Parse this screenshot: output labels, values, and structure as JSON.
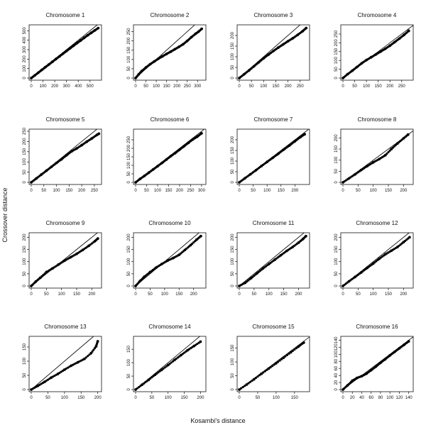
{
  "figure": {
    "xlabel": "Kosambi's distance",
    "ylabel": "Crossover distance"
  },
  "chart_data": [
    {
      "type": "scatter",
      "title": "Chromosome 1",
      "xlim": [
        0,
        580
      ],
      "ylim": [
        0,
        540
      ],
      "xticks": [
        0,
        100,
        200,
        300,
        400,
        500
      ],
      "yticks": [
        0,
        100,
        200,
        300,
        400,
        500
      ],
      "reference_line": "y = x",
      "points": [
        [
          0,
          0
        ],
        [
          30,
          28
        ],
        [
          60,
          57
        ],
        [
          90,
          86
        ],
        [
          120,
          115
        ],
        [
          150,
          143
        ],
        [
          180,
          172
        ],
        [
          210,
          201
        ],
        [
          240,
          229
        ],
        [
          270,
          258
        ],
        [
          300,
          286
        ],
        [
          330,
          314
        ],
        [
          360,
          342
        ],
        [
          390,
          370
        ],
        [
          420,
          397
        ],
        [
          450,
          425
        ],
        [
          480,
          452
        ],
        [
          510,
          478
        ],
        [
          540,
          503
        ],
        [
          570,
          528
        ]
      ]
    },
    {
      "type": "scatter",
      "title": "Chromosome  2",
      "xlim": [
        0,
        330
      ],
      "ylim": [
        0,
        275
      ],
      "xticks": [
        0,
        50,
        100,
        150,
        200,
        250,
        300
      ],
      "yticks": [
        0,
        50,
        100,
        150,
        200,
        250
      ],
      "reference_line": "y = x",
      "points": [
        [
          0,
          0
        ],
        [
          15,
          20
        ],
        [
          30,
          38
        ],
        [
          50,
          57
        ],
        [
          70,
          74
        ],
        [
          90,
          89
        ],
        [
          110,
          104
        ],
        [
          130,
          117
        ],
        [
          150,
          130
        ],
        [
          170,
          142
        ],
        [
          190,
          155
        ],
        [
          210,
          168
        ],
        [
          230,
          182
        ],
        [
          250,
          200
        ],
        [
          270,
          220
        ],
        [
          290,
          238
        ],
        [
          305,
          250
        ],
        [
          320,
          265
        ]
      ]
    },
    {
      "type": "scatter",
      "title": "Chromosome 3",
      "xlim": [
        0,
        280
      ],
      "ylim": [
        0,
        240
      ],
      "xticks": [
        0,
        50,
        100,
        150,
        200,
        250
      ],
      "yticks": [
        0,
        50,
        100,
        150,
        200
      ],
      "reference_line": "y = x",
      "points": [
        [
          0,
          0
        ],
        [
          20,
          18
        ],
        [
          40,
          36
        ],
        [
          60,
          55
        ],
        [
          80,
          74
        ],
        [
          100,
          93
        ],
        [
          120,
          110
        ],
        [
          140,
          127
        ],
        [
          160,
          143
        ],
        [
          180,
          158
        ],
        [
          200,
          173
        ],
        [
          220,
          187
        ],
        [
          240,
          203
        ],
        [
          260,
          220
        ],
        [
          275,
          235
        ]
      ]
    },
    {
      "type": "scatter",
      "title": "Chromosome 4",
      "xlim": [
        0,
        290
      ],
      "ylim": [
        0,
        290
      ],
      "xticks": [
        0,
        50,
        100,
        150,
        200,
        250
      ],
      "yticks": [
        0,
        50,
        100,
        150,
        200,
        250
      ],
      "reference_line": "y = x",
      "points": [
        [
          0,
          0
        ],
        [
          20,
          22
        ],
        [
          40,
          42
        ],
        [
          60,
          63
        ],
        [
          80,
          84
        ],
        [
          100,
          102
        ],
        [
          120,
          118
        ],
        [
          140,
          134
        ],
        [
          160,
          150
        ],
        [
          180,
          166
        ],
        [
          200,
          184
        ],
        [
          220,
          204
        ],
        [
          240,
          224
        ],
        [
          260,
          245
        ],
        [
          280,
          268
        ]
      ]
    },
    {
      "type": "scatter",
      "title": "Chromosome 5",
      "xlim": [
        0,
        270
      ],
      "ylim": [
        0,
        250
      ],
      "xticks": [
        0,
        50,
        100,
        150,
        200,
        250
      ],
      "yticks": [
        0,
        50,
        100,
        150,
        200,
        250
      ],
      "reference_line": "y = x",
      "points": [
        [
          0,
          0
        ],
        [
          20,
          19
        ],
        [
          40,
          38
        ],
        [
          60,
          57
        ],
        [
          80,
          76
        ],
        [
          100,
          95
        ],
        [
          120,
          113
        ],
        [
          140,
          133
        ],
        [
          160,
          152
        ],
        [
          180,
          166
        ],
        [
          200,
          182
        ],
        [
          220,
          199
        ],
        [
          240,
          215
        ],
        [
          260,
          232
        ],
        [
          268,
          238
        ]
      ]
    },
    {
      "type": "scatter",
      "title": "Chromosome 6",
      "xlim": [
        0,
        310
      ],
      "ylim": [
        0,
        300
      ],
      "xticks": [
        0,
        50,
        100,
        150,
        200,
        250,
        300
      ],
      "yticks": [
        0,
        50,
        100,
        150,
        200,
        250
      ],
      "reference_line": "y = x",
      "points": [
        [
          0,
          0
        ],
        [
          20,
          20
        ],
        [
          40,
          38
        ],
        [
          60,
          57
        ],
        [
          80,
          76
        ],
        [
          100,
          95
        ],
        [
          120,
          114
        ],
        [
          140,
          134
        ],
        [
          160,
          154
        ],
        [
          180,
          172
        ],
        [
          200,
          192
        ],
        [
          220,
          212
        ],
        [
          240,
          232
        ],
        [
          260,
          252
        ],
        [
          280,
          268
        ],
        [
          300,
          288
        ]
      ]
    },
    {
      "type": "scatter",
      "title": "Chromosome 7",
      "xlim": [
        0,
        245
      ],
      "ylim": [
        0,
        240
      ],
      "xticks": [
        0,
        50,
        100,
        150,
        200
      ],
      "yticks": [
        0,
        50,
        100,
        150,
        200
      ],
      "reference_line": "y = x",
      "points": [
        [
          0,
          0
        ],
        [
          20,
          19
        ],
        [
          40,
          38
        ],
        [
          60,
          57
        ],
        [
          80,
          77
        ],
        [
          100,
          96
        ],
        [
          120,
          115
        ],
        [
          140,
          134
        ],
        [
          160,
          154
        ],
        [
          180,
          173
        ],
        [
          200,
          193
        ],
        [
          220,
          213
        ],
        [
          235,
          226
        ]
      ]
    },
    {
      "type": "scatter",
      "title": "Chromosome 8",
      "xlim": [
        0,
        225
      ],
      "ylim": [
        0,
        230
      ],
      "xticks": [
        0,
        50,
        100,
        150,
        200
      ],
      "yticks": [
        0,
        50,
        100,
        150,
        200
      ],
      "reference_line": "y = x",
      "points": [
        [
          0,
          0
        ],
        [
          20,
          18
        ],
        [
          40,
          36
        ],
        [
          60,
          55
        ],
        [
          80,
          73
        ],
        [
          100,
          90
        ],
        [
          120,
          105
        ],
        [
          140,
          122
        ],
        [
          160,
          150
        ],
        [
          180,
          175
        ],
        [
          200,
          198
        ],
        [
          215,
          215
        ]
      ]
    },
    {
      "type": "scatter",
      "title": "Chromosome 9",
      "xlim": [
        0,
        225
      ],
      "ylim": [
        0,
        210
      ],
      "xticks": [
        0,
        50,
        100,
        150,
        200
      ],
      "yticks": [
        0,
        50,
        100,
        150,
        200
      ],
      "reference_line": "y = x",
      "points": [
        [
          0,
          0
        ],
        [
          15,
          18
        ],
        [
          30,
          34
        ],
        [
          50,
          57
        ],
        [
          70,
          72
        ],
        [
          90,
          88
        ],
        [
          110,
          104
        ],
        [
          130,
          118
        ],
        [
          150,
          132
        ],
        [
          170,
          148
        ],
        [
          190,
          165
        ],
        [
          210,
          184
        ],
        [
          220,
          195
        ]
      ]
    },
    {
      "type": "scatter",
      "title": "Chromosome 10",
      "xlim": [
        0,
        235
      ],
      "ylim": [
        0,
        210
      ],
      "xticks": [
        0,
        50,
        100,
        150,
        200
      ],
      "yticks": [
        0,
        50,
        100,
        150,
        200
      ],
      "reference_line": "y = x",
      "points": [
        [
          0,
          0
        ],
        [
          15,
          20
        ],
        [
          30,
          38
        ],
        [
          50,
          57
        ],
        [
          70,
          75
        ],
        [
          90,
          90
        ],
        [
          110,
          104
        ],
        [
          130,
          115
        ],
        [
          150,
          128
        ],
        [
          170,
          148
        ],
        [
          190,
          168
        ],
        [
          210,
          190
        ],
        [
          225,
          205
        ]
      ]
    },
    {
      "type": "scatter",
      "title": "Chromosome 11",
      "xlim": [
        0,
        230
      ],
      "ylim": [
        0,
        210
      ],
      "xticks": [
        0,
        50,
        100,
        150,
        200
      ],
      "yticks": [
        0,
        50,
        100,
        150,
        200
      ],
      "reference_line": "y = x",
      "points": [
        [
          0,
          0
        ],
        [
          20,
          13
        ],
        [
          40,
          32
        ],
        [
          60,
          52
        ],
        [
          80,
          72
        ],
        [
          100,
          90
        ],
        [
          120,
          108
        ],
        [
          140,
          126
        ],
        [
          160,
          144
        ],
        [
          180,
          160
        ],
        [
          200,
          178
        ],
        [
          215,
          193
        ],
        [
          225,
          205
        ]
      ]
    },
    {
      "type": "scatter",
      "title": "Chromosome 12",
      "xlim": [
        0,
        225
      ],
      "ylim": [
        0,
        210
      ],
      "xticks": [
        0,
        50,
        100,
        150,
        200
      ],
      "yticks": [
        0,
        50,
        100,
        150,
        200
      ],
      "reference_line": "y = x",
      "points": [
        [
          0,
          0
        ],
        [
          20,
          19
        ],
        [
          40,
          37
        ],
        [
          60,
          55
        ],
        [
          80,
          74
        ],
        [
          100,
          92
        ],
        [
          120,
          112
        ],
        [
          140,
          130
        ],
        [
          160,
          145
        ],
        [
          180,
          160
        ],
        [
          200,
          180
        ],
        [
          220,
          200
        ]
      ]
    },
    {
      "type": "scatter",
      "title": "Chromosome 13",
      "xlim": [
        0,
        205
      ],
      "ylim": [
        0,
        180
      ],
      "xticks": [
        0,
        50,
        100,
        150,
        200
      ],
      "yticks": [
        0,
        50,
        100,
        150
      ],
      "reference_line": "y = x",
      "points": [
        [
          0,
          0
        ],
        [
          20,
          13
        ],
        [
          40,
          27
        ],
        [
          60,
          42
        ],
        [
          80,
          55
        ],
        [
          100,
          70
        ],
        [
          120,
          84
        ],
        [
          140,
          96
        ],
        [
          160,
          108
        ],
        [
          180,
          128
        ],
        [
          195,
          152
        ],
        [
          200,
          170
        ]
      ]
    },
    {
      "type": "scatter",
      "title": "Chromosome 14",
      "xlim": [
        0,
        210
      ],
      "ylim": [
        0,
        190
      ],
      "xticks": [
        0,
        50,
        100,
        150,
        200
      ],
      "yticks": [
        0,
        50,
        100,
        150
      ],
      "reference_line": "y = x",
      "points": [
        [
          0,
          0
        ],
        [
          20,
          18
        ],
        [
          40,
          36
        ],
        [
          60,
          55
        ],
        [
          80,
          73
        ],
        [
          100,
          91
        ],
        [
          120,
          110
        ],
        [
          140,
          128
        ],
        [
          160,
          146
        ],
        [
          180,
          162
        ],
        [
          200,
          178
        ]
      ]
    },
    {
      "type": "scatter",
      "title": "Chromosome 15",
      "xlim": [
        0,
        185
      ],
      "ylim": [
        0,
        185
      ],
      "xticks": [
        0,
        50,
        100,
        150
      ],
      "yticks": [
        0,
        50,
        100,
        150
      ],
      "reference_line": "y = x",
      "points": [
        [
          0,
          0
        ],
        [
          20,
          18
        ],
        [
          40,
          37
        ],
        [
          60,
          57
        ],
        [
          80,
          76
        ],
        [
          100,
          95
        ],
        [
          120,
          115
        ],
        [
          140,
          135
        ],
        [
          160,
          155
        ],
        [
          175,
          170
        ]
      ]
    },
    {
      "type": "scatter",
      "title": "Chromosome 16",
      "xlim": [
        0,
        145
      ],
      "ylim": [
        0,
        145
      ],
      "xticks": [
        0,
        20,
        40,
        60,
        80,
        100,
        120,
        140
      ],
      "yticks": [
        0,
        20,
        40,
        60,
        80,
        100,
        120,
        140
      ],
      "reference_line": "y = x",
      "points": [
        [
          0,
          0
        ],
        [
          10,
          12
        ],
        [
          20,
          25
        ],
        [
          30,
          33
        ],
        [
          40,
          38
        ],
        [
          50,
          45
        ],
        [
          60,
          55
        ],
        [
          70,
          65
        ],
        [
          80,
          76
        ],
        [
          90,
          86
        ],
        [
          100,
          97
        ],
        [
          110,
          107
        ],
        [
          120,
          117
        ],
        [
          130,
          127
        ],
        [
          140,
          137
        ]
      ]
    }
  ]
}
